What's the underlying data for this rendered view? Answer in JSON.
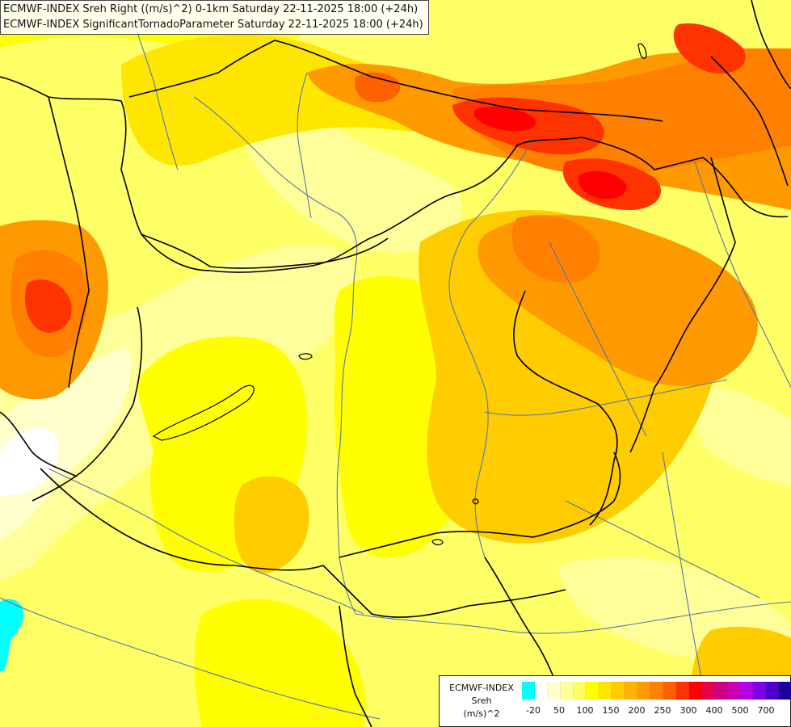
{
  "titles": {
    "line1": "ECMWF-INDEX Sreh Right ((m/s)^2) 0-1km Saturday 22-11-2025 18:00 (+24h)",
    "line2": "ECMWF-INDEX SignificantTornadoParameter Saturday 22-11-2025 18:00 (+24h)"
  },
  "legend": {
    "model": "ECMWF-INDEX",
    "parameter": "Sreh",
    "unit": "(m/s)^2",
    "colors": [
      "#00ffff",
      "#ffffff",
      "#ffffcc",
      "#ffff99",
      "#ffff66",
      "#ffff00",
      "#ffe600",
      "#ffcc00",
      "#ffb300",
      "#ff9900",
      "#ff8000",
      "#ff6000",
      "#ff3300",
      "#ff0000",
      "#e6004c",
      "#cc0080",
      "#cc00b3",
      "#b300e6",
      "#8000e6",
      "#4d00cc",
      "#1a0099"
    ],
    "tick_labels": [
      "-20",
      "50",
      "100",
      "150",
      "200",
      "250",
      "300",
      "400",
      "500",
      "700"
    ]
  },
  "map": {
    "background_color": "#ffff66",
    "shading_levels": {
      "light": "#ffffcc",
      "pale": "#ffff99",
      "base": "#ffff66",
      "yellow": "#ffff00",
      "gold": "#ffe600",
      "amber": "#ffcc00",
      "orange_light": "#ffb300",
      "orange": "#ff9900",
      "orange_dark": "#ff8000",
      "red_orange": "#ff6000",
      "red": "#ff3300",
      "deep_red": "#ff0000",
      "white": "#ffffff",
      "cyan": "#00ffff"
    },
    "border_color": "#000000",
    "river_color": "#5577aa"
  }
}
